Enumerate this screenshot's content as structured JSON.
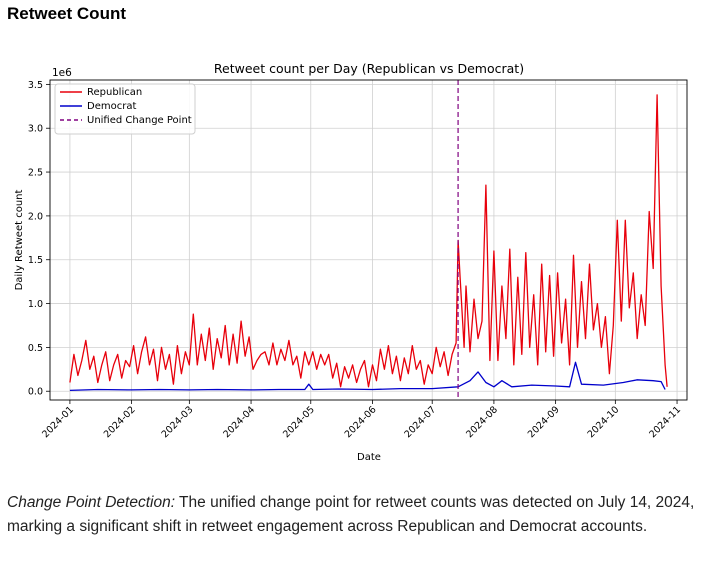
{
  "heading": "Retweet Count",
  "caption": {
    "lead": "Change Point Detection:",
    "text": " The unified change point for retweet counts was detected on July 14, 2024, marking a significant shift in retweet engagement across Republican and Democrat accounts."
  },
  "chart_data": {
    "type": "line",
    "title": "Retweet count per Day (Republican vs Democrat)",
    "xlabel": "Date",
    "ylabel": "Daily Retweet count",
    "y_multiplier_label": "1e6",
    "x_range": [
      "2023-12-22",
      "2024-11-06"
    ],
    "ylim": [
      -0.1,
      3.55
    ],
    "x_ticks": [
      "2024-01",
      "2024-02",
      "2024-03",
      "2024-04",
      "2024-05",
      "2024-06",
      "2024-07",
      "2024-08",
      "2024-09",
      "2024-10",
      "2024-11"
    ],
    "y_ticks": [
      "0.0",
      "0.5",
      "1.0",
      "1.5",
      "2.0",
      "2.5",
      "3.0",
      "3.5"
    ],
    "grid": true,
    "legend_position": "top-left",
    "change_point": {
      "label": "Unified Change Point",
      "date": "2024-07-14",
      "color": "#800080"
    },
    "series": [
      {
        "name": "Republican",
        "color": "#e8000b",
        "points": [
          [
            "2024-01-01",
            0.1
          ],
          [
            "2024-01-03",
            0.42
          ],
          [
            "2024-01-05",
            0.18
          ],
          [
            "2024-01-07",
            0.35
          ],
          [
            "2024-01-09",
            0.58
          ],
          [
            "2024-01-11",
            0.25
          ],
          [
            "2024-01-13",
            0.4
          ],
          [
            "2024-01-15",
            0.1
          ],
          [
            "2024-01-17",
            0.3
          ],
          [
            "2024-01-19",
            0.45
          ],
          [
            "2024-01-21",
            0.12
          ],
          [
            "2024-01-23",
            0.3
          ],
          [
            "2024-01-25",
            0.42
          ],
          [
            "2024-01-27",
            0.15
          ],
          [
            "2024-01-29",
            0.35
          ],
          [
            "2024-01-31",
            0.28
          ],
          [
            "2024-02-02",
            0.52
          ],
          [
            "2024-02-04",
            0.2
          ],
          [
            "2024-02-06",
            0.45
          ],
          [
            "2024-02-08",
            0.62
          ],
          [
            "2024-02-10",
            0.3
          ],
          [
            "2024-02-12",
            0.48
          ],
          [
            "2024-02-14",
            0.12
          ],
          [
            "2024-02-16",
            0.5
          ],
          [
            "2024-02-18",
            0.25
          ],
          [
            "2024-02-20",
            0.42
          ],
          [
            "2024-02-22",
            0.08
          ],
          [
            "2024-02-24",
            0.52
          ],
          [
            "2024-02-26",
            0.2
          ],
          [
            "2024-02-28",
            0.45
          ],
          [
            "2024-03-01",
            0.3
          ],
          [
            "2024-03-03",
            0.88
          ],
          [
            "2024-03-05",
            0.3
          ],
          [
            "2024-03-07",
            0.65
          ],
          [
            "2024-03-09",
            0.35
          ],
          [
            "2024-03-11",
            0.72
          ],
          [
            "2024-03-13",
            0.25
          ],
          [
            "2024-03-15",
            0.6
          ],
          [
            "2024-03-17",
            0.38
          ],
          [
            "2024-03-19",
            0.75
          ],
          [
            "2024-03-21",
            0.3
          ],
          [
            "2024-03-23",
            0.65
          ],
          [
            "2024-03-25",
            0.32
          ],
          [
            "2024-03-27",
            0.8
          ],
          [
            "2024-03-29",
            0.4
          ],
          [
            "2024-03-31",
            0.62
          ],
          [
            "2024-04-02",
            0.25
          ],
          [
            "2024-04-04",
            0.35
          ],
          [
            "2024-04-06",
            0.42
          ],
          [
            "2024-04-08",
            0.45
          ],
          [
            "2024-04-10",
            0.3
          ],
          [
            "2024-04-12",
            0.55
          ],
          [
            "2024-04-14",
            0.3
          ],
          [
            "2024-04-16",
            0.48
          ],
          [
            "2024-04-18",
            0.35
          ],
          [
            "2024-04-20",
            0.58
          ],
          [
            "2024-04-22",
            0.3
          ],
          [
            "2024-04-24",
            0.4
          ],
          [
            "2024-04-26",
            0.15
          ],
          [
            "2024-04-28",
            0.45
          ],
          [
            "2024-04-30",
            0.3
          ],
          [
            "2024-05-02",
            0.45
          ],
          [
            "2024-05-04",
            0.25
          ],
          [
            "2024-05-06",
            0.42
          ],
          [
            "2024-05-08",
            0.3
          ],
          [
            "2024-05-10",
            0.42
          ],
          [
            "2024-05-12",
            0.15
          ],
          [
            "2024-05-14",
            0.32
          ],
          [
            "2024-05-16",
            0.05
          ],
          [
            "2024-05-18",
            0.28
          ],
          [
            "2024-05-20",
            0.15
          ],
          [
            "2024-05-22",
            0.3
          ],
          [
            "2024-05-24",
            0.1
          ],
          [
            "2024-05-26",
            0.25
          ],
          [
            "2024-05-28",
            0.35
          ],
          [
            "2024-05-30",
            0.05
          ],
          [
            "2024-06-01",
            0.3
          ],
          [
            "2024-06-03",
            0.12
          ],
          [
            "2024-06-05",
            0.48
          ],
          [
            "2024-06-07",
            0.25
          ],
          [
            "2024-06-09",
            0.52
          ],
          [
            "2024-06-11",
            0.2
          ],
          [
            "2024-06-13",
            0.4
          ],
          [
            "2024-06-15",
            0.12
          ],
          [
            "2024-06-17",
            0.38
          ],
          [
            "2024-06-19",
            0.2
          ],
          [
            "2024-06-21",
            0.52
          ],
          [
            "2024-06-23",
            0.25
          ],
          [
            "2024-06-25",
            0.35
          ],
          [
            "2024-06-27",
            0.08
          ],
          [
            "2024-06-29",
            0.3
          ],
          [
            "2024-07-01",
            0.2
          ],
          [
            "2024-07-03",
            0.5
          ],
          [
            "2024-07-05",
            0.28
          ],
          [
            "2024-07-07",
            0.45
          ],
          [
            "2024-07-09",
            0.18
          ],
          [
            "2024-07-11",
            0.42
          ],
          [
            "2024-07-13",
            0.55
          ],
          [
            "2024-07-14",
            1.72
          ],
          [
            "2024-07-15",
            1.3
          ],
          [
            "2024-07-17",
            0.5
          ],
          [
            "2024-07-18",
            1.2
          ],
          [
            "2024-07-20",
            0.45
          ],
          [
            "2024-07-22",
            1.05
          ],
          [
            "2024-07-24",
            0.6
          ],
          [
            "2024-07-26",
            0.8
          ],
          [
            "2024-07-28",
            2.35
          ],
          [
            "2024-07-30",
            0.35
          ],
          [
            "2024-08-01",
            1.6
          ],
          [
            "2024-08-03",
            0.35
          ],
          [
            "2024-08-05",
            1.2
          ],
          [
            "2024-08-07",
            0.6
          ],
          [
            "2024-08-09",
            1.62
          ],
          [
            "2024-08-11",
            0.3
          ],
          [
            "2024-08-13",
            1.3
          ],
          [
            "2024-08-15",
            0.42
          ],
          [
            "2024-08-17",
            1.58
          ],
          [
            "2024-08-19",
            0.5
          ],
          [
            "2024-08-21",
            1.1
          ],
          [
            "2024-08-23",
            0.3
          ],
          [
            "2024-08-25",
            1.45
          ],
          [
            "2024-08-27",
            0.45
          ],
          [
            "2024-08-29",
            1.32
          ],
          [
            "2024-08-31",
            0.4
          ],
          [
            "2024-09-02",
            1.35
          ],
          [
            "2024-09-04",
            0.55
          ],
          [
            "2024-09-06",
            1.05
          ],
          [
            "2024-09-08",
            0.3
          ],
          [
            "2024-09-10",
            1.55
          ],
          [
            "2024-09-12",
            0.5
          ],
          [
            "2024-09-14",
            1.25
          ],
          [
            "2024-09-16",
            0.6
          ],
          [
            "2024-09-18",
            1.45
          ],
          [
            "2024-09-20",
            0.7
          ],
          [
            "2024-09-22",
            1.0
          ],
          [
            "2024-09-24",
            0.5
          ],
          [
            "2024-09-26",
            0.85
          ],
          [
            "2024-09-28",
            0.2
          ],
          [
            "2024-09-30",
            0.75
          ],
          [
            "2024-10-02",
            1.95
          ],
          [
            "2024-10-04",
            0.8
          ],
          [
            "2024-10-06",
            1.95
          ],
          [
            "2024-10-08",
            0.95
          ],
          [
            "2024-10-10",
            1.35
          ],
          [
            "2024-10-12",
            0.6
          ],
          [
            "2024-10-14",
            1.1
          ],
          [
            "2024-10-16",
            0.75
          ],
          [
            "2024-10-18",
            2.05
          ],
          [
            "2024-10-20",
            1.4
          ],
          [
            "2024-10-22",
            3.38
          ],
          [
            "2024-10-24",
            1.2
          ],
          [
            "2024-10-26",
            0.3
          ],
          [
            "2024-10-27",
            0.05
          ]
        ]
      },
      {
        "name": "Democrat",
        "color": "#0000cc",
        "points": [
          [
            "2024-01-01",
            0.01
          ],
          [
            "2024-01-15",
            0.02
          ],
          [
            "2024-02-01",
            0.015
          ],
          [
            "2024-02-15",
            0.02
          ],
          [
            "2024-03-01",
            0.015
          ],
          [
            "2024-03-15",
            0.02
          ],
          [
            "2024-04-01",
            0.015
          ],
          [
            "2024-04-15",
            0.02
          ],
          [
            "2024-04-28",
            0.02
          ],
          [
            "2024-04-30",
            0.08
          ],
          [
            "2024-05-02",
            0.02
          ],
          [
            "2024-05-15",
            0.025
          ],
          [
            "2024-06-01",
            0.02
          ],
          [
            "2024-06-15",
            0.03
          ],
          [
            "2024-07-01",
            0.03
          ],
          [
            "2024-07-14",
            0.05
          ],
          [
            "2024-07-20",
            0.12
          ],
          [
            "2024-07-24",
            0.22
          ],
          [
            "2024-07-28",
            0.1
          ],
          [
            "2024-08-01",
            0.05
          ],
          [
            "2024-08-05",
            0.12
          ],
          [
            "2024-08-10",
            0.05
          ],
          [
            "2024-08-20",
            0.07
          ],
          [
            "2024-09-01",
            0.06
          ],
          [
            "2024-09-08",
            0.05
          ],
          [
            "2024-09-11",
            0.33
          ],
          [
            "2024-09-14",
            0.08
          ],
          [
            "2024-09-25",
            0.07
          ],
          [
            "2024-10-05",
            0.1
          ],
          [
            "2024-10-12",
            0.13
          ],
          [
            "2024-10-20",
            0.12
          ],
          [
            "2024-10-24",
            0.11
          ],
          [
            "2024-10-26",
            0.02
          ]
        ]
      }
    ]
  }
}
